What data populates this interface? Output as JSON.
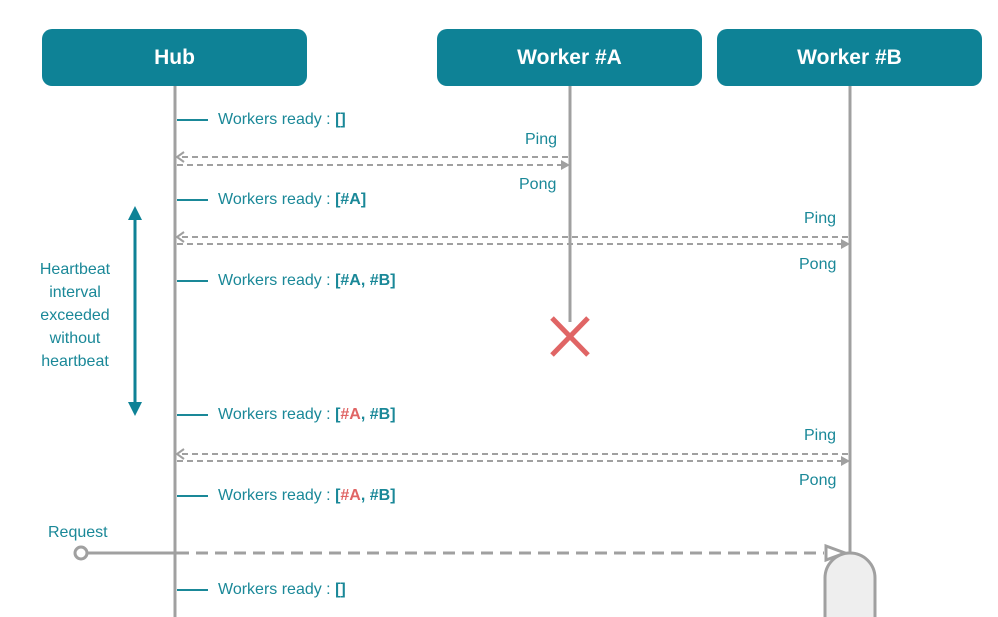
{
  "nodes": {
    "hub": "Hub",
    "worker_a": "Worker #A",
    "worker_b": "Worker #B"
  },
  "messages": {
    "ping": "Ping",
    "pong": "Pong",
    "request": "Request"
  },
  "status_prefix": "Workers ready : ",
  "status_lines": [
    {
      "open": "[",
      "items": [],
      "close": "]"
    },
    {
      "open": "[",
      "items": [
        {
          "text": "#A",
          "state": "ok"
        }
      ],
      "close": "]"
    },
    {
      "open": "[",
      "items": [
        {
          "text": "#A",
          "state": "ok"
        },
        {
          "text": ", ",
          "state": "sep"
        },
        {
          "text": "#B",
          "state": "ok"
        }
      ],
      "close": "]"
    },
    {
      "open": "[",
      "items": [
        {
          "text": "#A",
          "state": "failed"
        },
        {
          "text": ", ",
          "state": "sep"
        },
        {
          "text": "#B",
          "state": "ok"
        }
      ],
      "close": "]"
    },
    {
      "open": "[",
      "items": [
        {
          "text": "#A",
          "state": "failed"
        },
        {
          "text": ", ",
          "state": "sep"
        },
        {
          "text": "#B",
          "state": "ok"
        }
      ],
      "close": "]"
    },
    {
      "open": "[",
      "items": [],
      "close": "]"
    }
  ],
  "heartbeat_note": "Heartbeat interval exceeded without heartbeat",
  "colors": {
    "primary": "#0e8296",
    "text": "#1a8898",
    "failed": "#e06565",
    "line": "#a0a0a0"
  }
}
